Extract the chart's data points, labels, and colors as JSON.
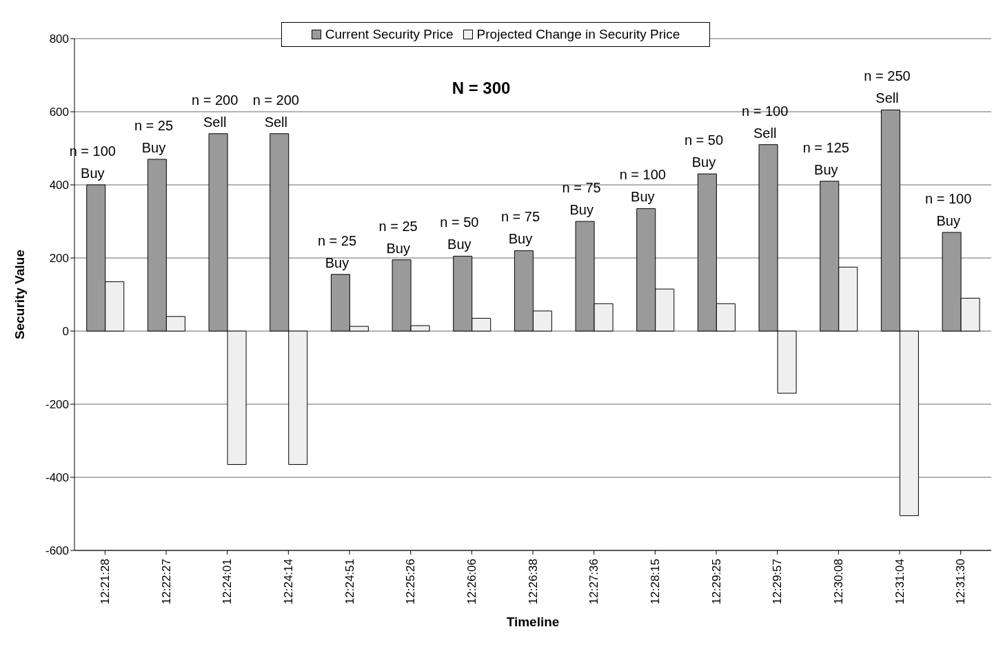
{
  "chart_data": {
    "type": "bar",
    "xlabel": "Timeline",
    "ylabel": "Security Value",
    "categories": [
      "12:21:28",
      "12:22:27",
      "12:24:01",
      "12:24:14",
      "12:24:51",
      "12:25:26",
      "12:26:06",
      "12:26:38",
      "12:27:36",
      "12:28:15",
      "12:29:25",
      "12:29:57",
      "12:30:08",
      "12:31:04",
      "12:31:30"
    ],
    "series": [
      {
        "name": "Current Security Price",
        "color": "#9a9a9a",
        "values": [
          400,
          470,
          540,
          540,
          155,
          195,
          205,
          220,
          300,
          335,
          430,
          510,
          410,
          605,
          270
        ]
      },
      {
        "name": "Projected Change in Security Price",
        "color": "#efefef",
        "values": [
          135,
          40,
          -365,
          -365,
          13,
          15,
          35,
          55,
          75,
          115,
          75,
          -170,
          175,
          -505,
          90
        ]
      }
    ],
    "ylim": [
      -600,
      800
    ],
    "yticks": [
      -600,
      -400,
      -200,
      0,
      200,
      400,
      600,
      800
    ],
    "grid": "y",
    "legend": "top",
    "annotations": [
      "N = 300",
      {
        "text": "n = 100\nBuy",
        "x": "12:21:28",
        "y": 400
      },
      {
        "text": "n = 25\nBuy",
        "x": "12:22:27",
        "y": 470
      },
      {
        "text": "n = 200\nSell",
        "x": "12:24:01",
        "y": 540
      },
      {
        "text": "n = 200\nSell",
        "x": "12:24:14",
        "y": 540
      },
      {
        "text": "n = 25\nBuy",
        "x": "12:24:51",
        "y": 155
      },
      {
        "text": "n = 25\nBuy",
        "x": "12:25:26",
        "y": 195
      },
      {
        "text": "n = 50\nBuy",
        "x": "12:26:06",
        "y": 205
      },
      {
        "text": "n = 75\nBuy",
        "x": "12:26:38",
        "y": 220
      },
      {
        "text": "n = 75\nBuy",
        "x": "12:27:36",
        "y": 300
      },
      {
        "text": "n = 100\nBuy",
        "x": "12:28:15",
        "y": 335
      },
      {
        "text": "n = 50\nBuy",
        "x": "12:29:25",
        "y": 430
      },
      {
        "text": "n = 100\nSell",
        "x": "12:29:57",
        "y": 510
      },
      {
        "text": "n = 125\nBuy",
        "x": "12:30:08",
        "y": 410
      },
      {
        "text": "n = 250\nSell",
        "x": "12:31:04",
        "y": 605
      },
      {
        "text": "n = 100\nBuy",
        "x": "12:31:30",
        "y": 270
      }
    ]
  }
}
